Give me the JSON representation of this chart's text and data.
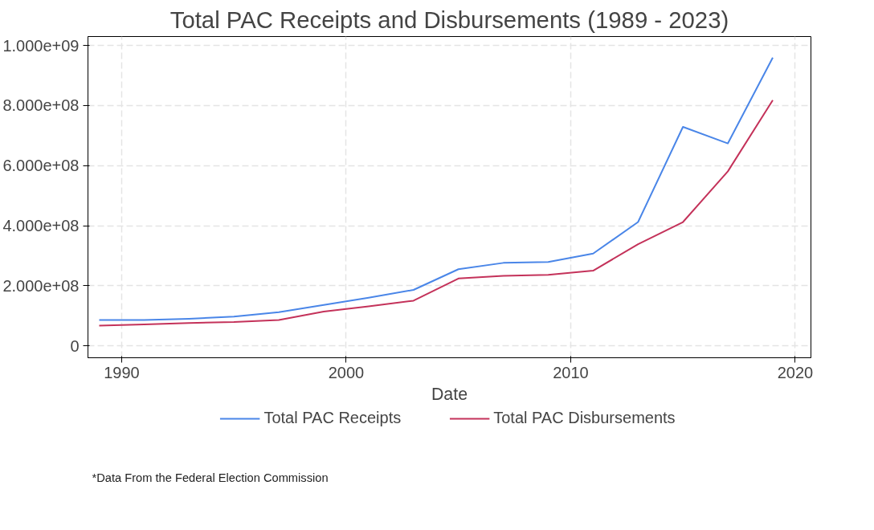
{
  "chart_data": {
    "type": "line",
    "title": "Total PAC Receipts and Disbursements (1989 - 2023)",
    "xlabel": "Date",
    "x": [
      1989,
      1991,
      1993,
      1995,
      1997,
      1999,
      2001,
      2003,
      2005,
      2007,
      2009,
      2011,
      2013,
      2015,
      2017,
      2019
    ],
    "series": [
      {
        "name": "Total PAC Receipts",
        "color": "#4a86e8",
        "values": [
          86000000,
          86000000,
          90000000,
          97000000,
          112000000,
          136000000,
          160000000,
          186000000,
          255000000,
          276000000,
          279000000,
          307000000,
          412000000,
          729000000,
          674000000,
          960000000
        ]
      },
      {
        "name": "Total PAC Disbursements",
        "color": "#c4325a",
        "values": [
          67000000,
          71000000,
          76000000,
          79000000,
          86000000,
          114000000,
          131000000,
          150000000,
          224000000,
          233000000,
          236000000,
          250000000,
          338000000,
          412000000,
          581000000,
          818000000
        ]
      }
    ],
    "xlim": [
      1988.5,
      2020.7
    ],
    "xticks": [
      1990,
      2000,
      2010,
      2020
    ],
    "ylim": [
      -40000000,
      1030000000
    ],
    "yticks": [
      0,
      {
        "value": 200000000,
        "label": "2.000e+08"
      },
      {
        "value": 400000000,
        "label": "4.000e+08"
      },
      {
        "value": 600000000,
        "label": "6.000e+08"
      },
      {
        "value": 800000000,
        "label": "8.000e+08"
      },
      {
        "value": 1000000000,
        "label": "1.000e+09"
      }
    ],
    "grid": true,
    "legend": "bottom",
    "line_style": "solid",
    "marker": "none",
    "annotations": [
      "*Data From the Federal Election Commission"
    ]
  }
}
